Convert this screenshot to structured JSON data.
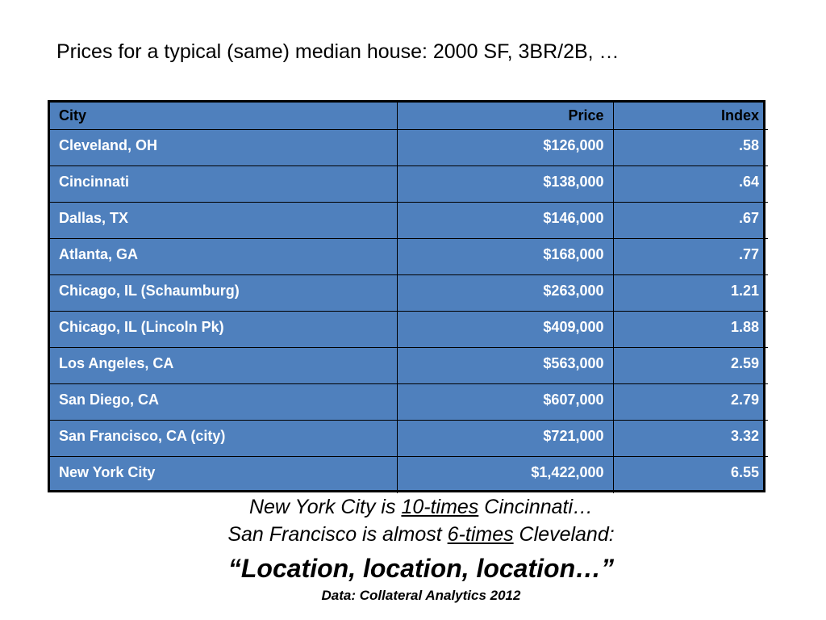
{
  "title": "Prices for a typical (same) median house: 2000 SF, 3BR/2B, …",
  "table": {
    "headers": [
      "City",
      "Price",
      "Index"
    ],
    "rows": [
      {
        "city": "Cleveland, OH",
        "price": "$126,000",
        "index": ".58"
      },
      {
        "city": "Cincinnati",
        "price": "$138,000",
        "index": ".64"
      },
      {
        "city": "Dallas, TX",
        "price": "$146,000",
        "index": ".67"
      },
      {
        "city": "Atlanta, GA",
        "price": "$168,000",
        "index": ".77"
      },
      {
        "city": "Chicago, IL (Schaumburg)",
        "price": "$263,000",
        "index": "1.21"
      },
      {
        "city": "Chicago, IL (Lincoln Pk)",
        "price": "$409,000",
        "index": "1.88"
      },
      {
        "city": "Los Angeles, CA",
        "price": "$563,000",
        "index": "2.59"
      },
      {
        "city": "San Diego, CA",
        "price": "$607,000",
        "index": "2.79"
      },
      {
        "city": "San Francisco, CA (city)",
        "price": "$721,000",
        "index": "3.32"
      },
      {
        "city": "New York City",
        "price": "$1,422,000",
        "index": "6.55"
      }
    ]
  },
  "notes": {
    "line1": {
      "before": "New York City is ",
      "emphasis": "10-times",
      "after": " Cincinnati…"
    },
    "line2": {
      "before": "San Francisco is almost ",
      "emphasis": "6-times",
      "after": " Cleveland:"
    },
    "tagline": "“Location, location, location…”",
    "source": "Data: Collateral Analytics 2012"
  },
  "colors": {
    "table_fill": "#4f80bd",
    "header_text": "#000000",
    "cell_text": "#ffffff"
  }
}
